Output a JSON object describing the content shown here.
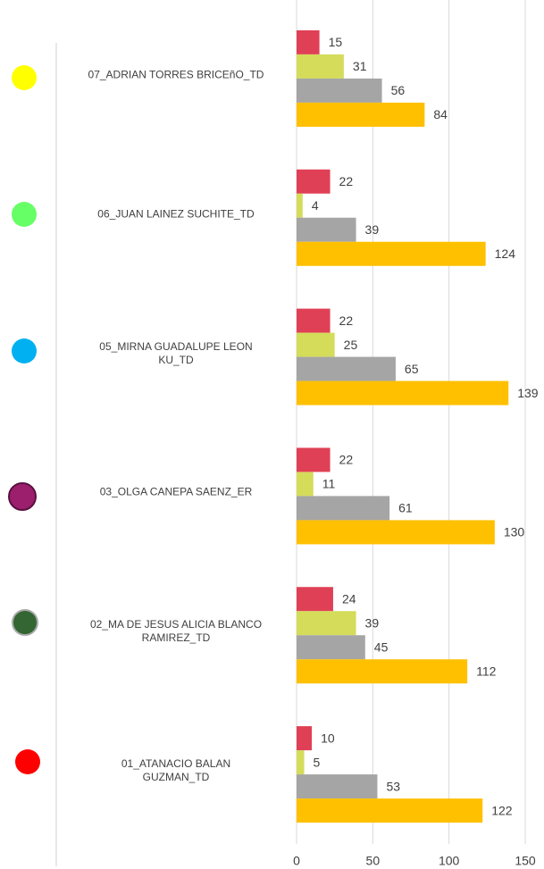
{
  "chart_data": {
    "type": "hbar",
    "categories": [
      "07_ADRIAN TORRES BRICEñO_TD",
      "06_JUAN LAINEZ SUCHITE_TD",
      "05_MIRNA GUADALUPE LEON KU_TD",
      "03_OLGA CANEPA SAENZ_ER",
      "02_MA DE JESUS ALICIA BLANCO RAMIREZ_TD",
      "01_ATANACIO BALAN GUZMAN_TD"
    ],
    "series": [
      {
        "color": "#e04055",
        "values": [
          15,
          22,
          22,
          22,
          24,
          10
        ]
      },
      {
        "color": "#d4dc5a",
        "values": [
          31,
          4,
          25,
          11,
          39,
          5
        ]
      },
      {
        "color": "#a5a5a5",
        "values": [
          56,
          39,
          65,
          61,
          45,
          53
        ]
      },
      {
        "color": "#ffc000",
        "values": [
          84,
          124,
          139,
          130,
          112,
          122
        ]
      }
    ],
    "xlim": [
      0,
      150
    ],
    "xticks": [
      0,
      50,
      100,
      150
    ],
    "grid": true
  }
}
